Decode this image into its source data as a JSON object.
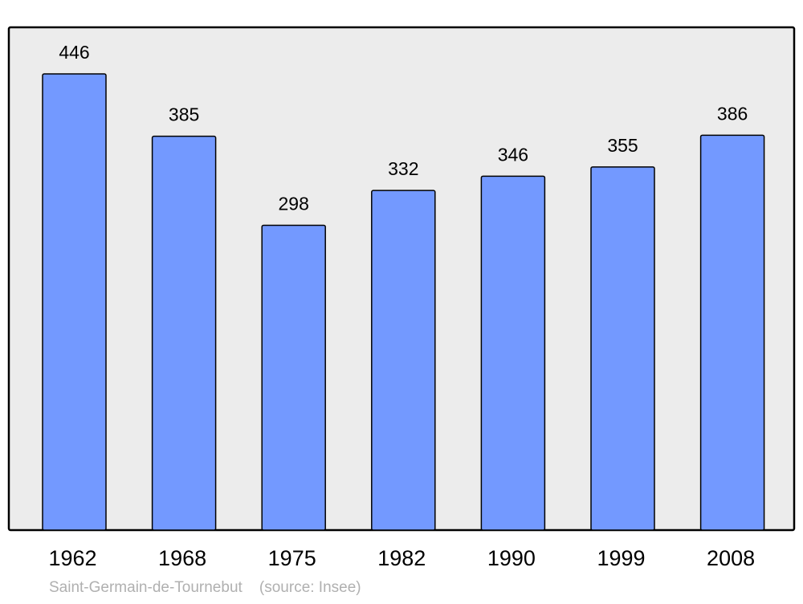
{
  "chart_data": {
    "type": "bar",
    "categories": [
      "1962",
      "1968",
      "1975",
      "1982",
      "1990",
      "1999",
      "2008"
    ],
    "values": [
      446,
      385,
      298,
      332,
      346,
      355,
      386
    ],
    "data_labels": [
      "446",
      "385",
      "298",
      "332",
      "346",
      "355",
      "386"
    ],
    "title": "",
    "xlabel": "",
    "ylabel": "",
    "ylim": [
      0,
      491.5
    ],
    "grid": false,
    "footer": "Saint-Germain-de-Tournebut    (source: Insee)",
    "colors": {
      "bar": "#7399ff",
      "plot_background": "#ececec",
      "border": "#000000",
      "footer_text": "#b0b0b0"
    }
  }
}
